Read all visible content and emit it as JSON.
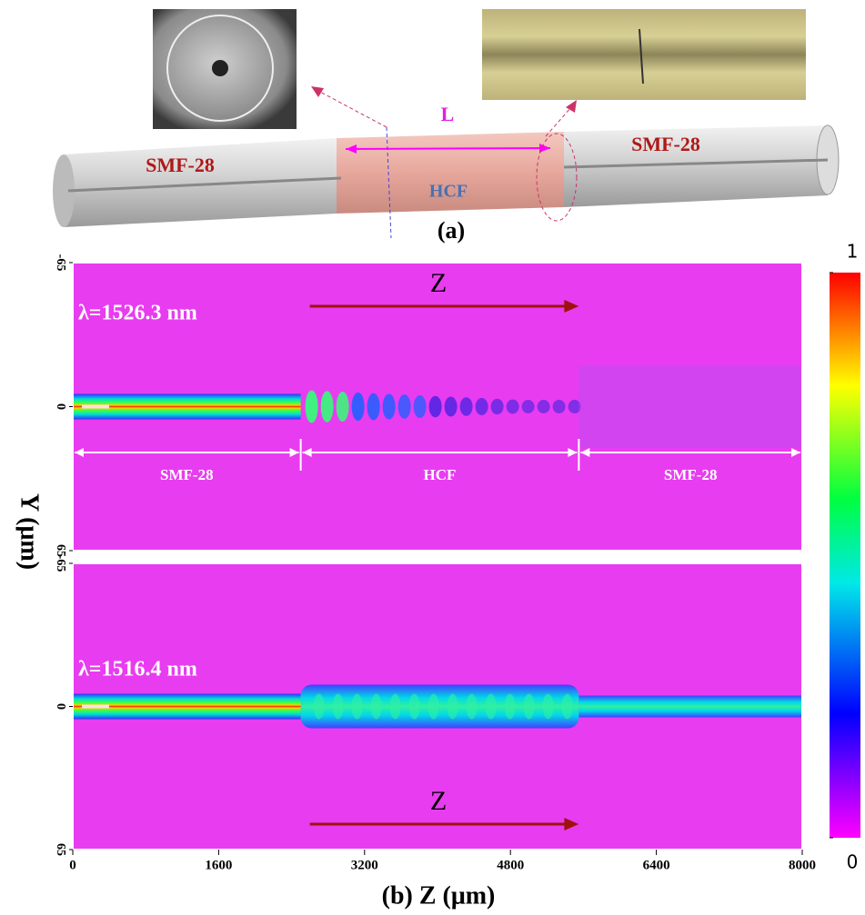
{
  "schematic": {
    "length_label": "L",
    "left_fiber": "SMF-28",
    "right_fiber": "SMF-28",
    "middle_fiber": "HCF",
    "panel_label": "(a)"
  },
  "chart_data": {
    "type": "heatmap",
    "xlabel": "(b) Z (μm)",
    "ylabel": "Y (μm)",
    "xlim": [
      0,
      8000
    ],
    "xticks": [
      0,
      1600,
      3200,
      4800,
      6400,
      8000
    ],
    "ylim": [
      -65,
      65
    ],
    "yticks": [
      -65,
      0,
      65
    ],
    "panels": [
      {
        "annotation": "λ=1526.3 nm",
        "arrow_label": "Z",
        "sections": [
          {
            "label": "SMF-28",
            "start": 0,
            "end": 2500
          },
          {
            "label": "HCF",
            "start": 2500,
            "end": 5550
          },
          {
            "label": "SMF-28",
            "start": 5550,
            "end": 8000
          }
        ]
      },
      {
        "annotation": "λ=1516.4 nm",
        "arrow_label": "Z"
      }
    ],
    "colorbar_lim": [
      0,
      1
    ],
    "colorbar_ticks": [
      0,
      1
    ]
  }
}
